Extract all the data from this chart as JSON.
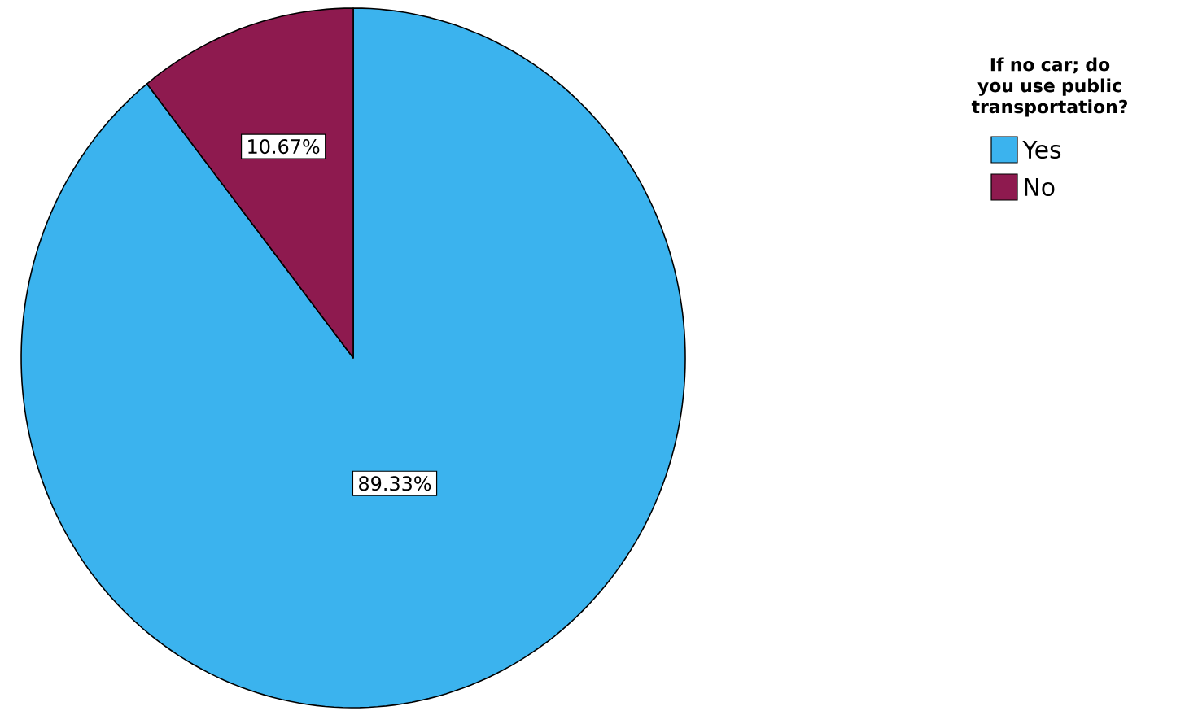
{
  "chart_data": {
    "type": "pie",
    "legend_title": "If no car; do you use public transportation?",
    "categories": [
      "Yes",
      "No"
    ],
    "values": [
      89.33,
      10.67
    ],
    "colors": [
      "#3bb3ee",
      "#8e1a4f"
    ],
    "value_labels": [
      "89.33%",
      "10.67%"
    ],
    "legend": "top right"
  }
}
